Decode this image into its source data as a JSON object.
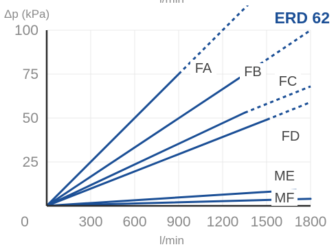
{
  "chart_data": {
    "type": "line",
    "title": "ERD 62",
    "ylabel": "Δp (kPa)",
    "xlabel": "l/min",
    "top_xlabel": "l/min",
    "xlim": [
      0,
      1800
    ],
    "ylim": [
      0,
      100
    ],
    "x_ticks": [
      "0",
      "300",
      "600",
      "900",
      "1200",
      "1500",
      "1800"
    ],
    "y_ticks": [
      "25",
      "50",
      "75",
      "100"
    ],
    "grid": true,
    "series": [
      {
        "name": "FA",
        "solid": [
          [
            0,
            0
          ],
          [
            900,
            75
          ]
        ],
        "dashed": [
          [
            900,
            75
          ],
          [
            1500,
            125
          ]
        ]
      },
      {
        "name": "FB",
        "solid": [
          [
            0,
            0
          ],
          [
            1300,
            72
          ]
        ],
        "dashed": [
          [
            1300,
            72
          ],
          [
            1800,
            100
          ]
        ]
      },
      {
        "name": "FC",
        "solid": [
          [
            0,
            0
          ],
          [
            1350,
            53
          ]
        ],
        "dashed": [
          [
            1350,
            53
          ],
          [
            1800,
            68
          ]
        ]
      },
      {
        "name": "FD",
        "solid": [
          [
            0,
            0
          ],
          [
            1500,
            49
          ]
        ],
        "dashed": [
          [
            1500,
            49
          ],
          [
            1800,
            59
          ]
        ]
      },
      {
        "name": "ME",
        "solid": [
          [
            0,
            0
          ],
          [
            1700,
            9
          ]
        ],
        "dashed": []
      },
      {
        "name": "MF",
        "solid": [
          [
            0,
            0
          ],
          [
            1800,
            4
          ]
        ],
        "dashed": []
      }
    ],
    "colors": {
      "line": "#1b4f96",
      "grid": "#ffffff",
      "axis": "#2b2b2b",
      "text": "#8a8a8a",
      "label": "#444444"
    }
  }
}
